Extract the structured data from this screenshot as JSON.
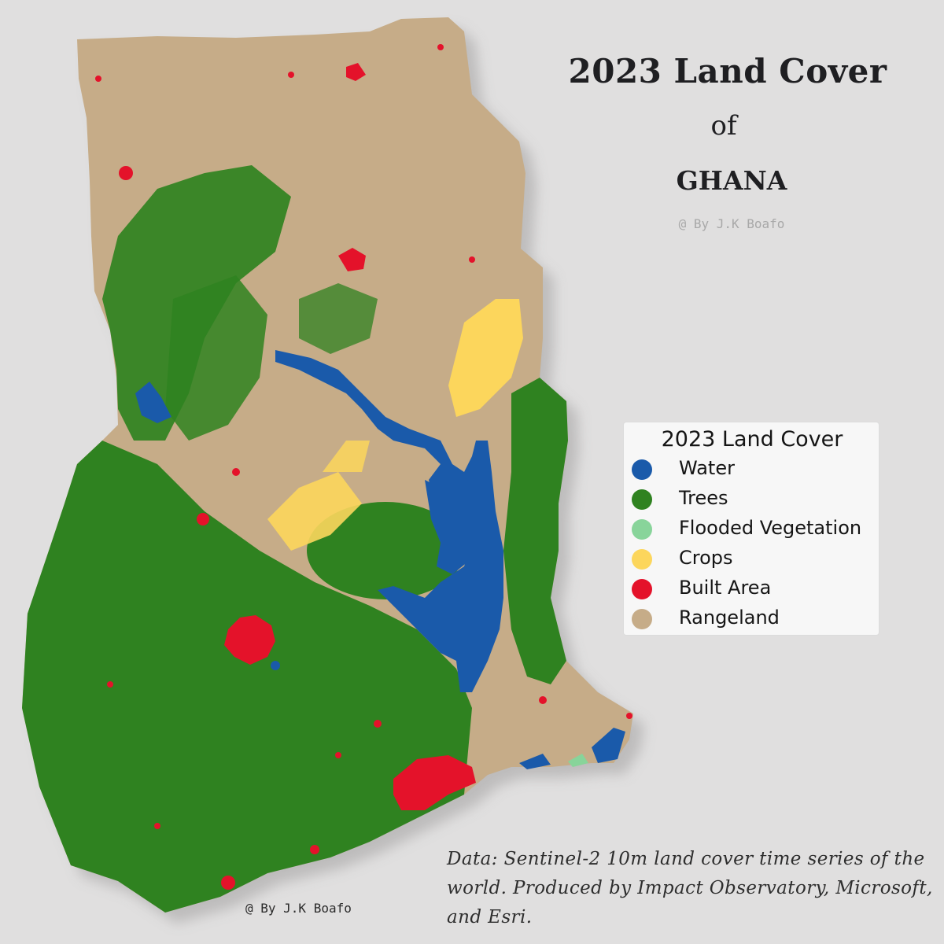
{
  "title": "2023 Land Cover",
  "subtitle_of": "of",
  "country": "GHANA",
  "credit_top": "@ By J.K Boafo",
  "credit_bottom": "@ By J.K Boafo",
  "source_note": "Data: Sentinel-2 10m land cover time series of the world. Produced by Impact Observatory, Microsoft, and Esri.",
  "legend": {
    "title": "2023 Land Cover",
    "items": [
      {
        "label": "Water",
        "color": "#1a5aaa"
      },
      {
        "label": "Trees",
        "color": "#2f8220"
      },
      {
        "label": "Flooded Vegetation",
        "color": "#88d49a"
      },
      {
        "label": "Crops",
        "color": "#fcd65c"
      },
      {
        "label": "Built Area",
        "color": "#e4122a"
      },
      {
        "label": "Rangeland",
        "color": "#c6ac88"
      }
    ]
  },
  "colors": {
    "background": "#e0dfdf",
    "water": "#1a5aaa",
    "trees": "#2f8220",
    "flooded_vegetation": "#88d49a",
    "crops": "#fcd65c",
    "built_area": "#e4122a",
    "rangeland": "#c6ac88"
  }
}
